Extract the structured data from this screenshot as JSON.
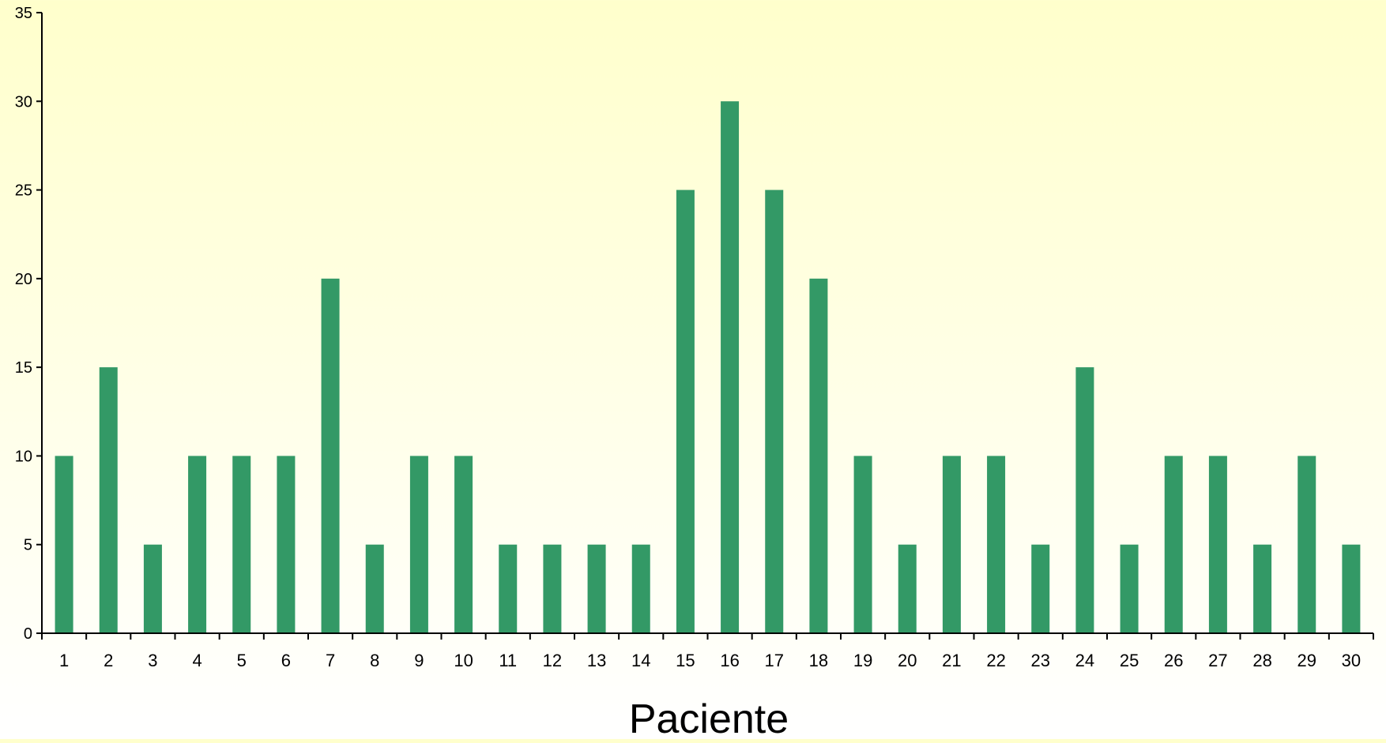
{
  "chart_data": {
    "type": "bar",
    "title": "",
    "xlabel": "Paciente",
    "ylabel": "",
    "categories": [
      "1",
      "2",
      "3",
      "4",
      "5",
      "6",
      "7",
      "8",
      "9",
      "10",
      "11",
      "12",
      "13",
      "14",
      "15",
      "16",
      "17",
      "18",
      "19",
      "20",
      "21",
      "22",
      "23",
      "24",
      "25",
      "26",
      "27",
      "28",
      "29",
      "30"
    ],
    "series": [
      {
        "values": [
          10,
          15,
          5,
          10,
          10,
          10,
          20,
          5,
          10,
          10,
          5,
          5,
          5,
          5,
          25,
          30,
          25,
          20,
          10,
          5,
          10,
          10,
          5,
          15,
          5,
          10,
          10,
          5,
          10,
          5
        ]
      }
    ],
    "ylim": [
      0,
      35
    ],
    "yticks": [
      0,
      5,
      10,
      15,
      20,
      25,
      30,
      35
    ],
    "grid": false,
    "legend": "none",
    "colors": {
      "bar": "#339966",
      "axis": "#000000",
      "background_top": "#ffffcc",
      "background_bottom": "#ffffff"
    }
  }
}
